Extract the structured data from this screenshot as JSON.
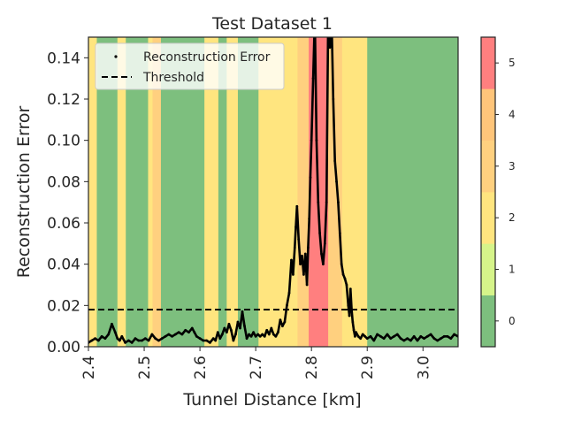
{
  "chart_data": {
    "type": "line",
    "title": "Test Dataset 1",
    "xlabel": "Tunnel Distance [km]",
    "ylabel": "Reconstruction Error",
    "xlim": [
      2.4,
      3.063
    ],
    "ylim": [
      0.0,
      0.15
    ],
    "x_ticks": [
      2.4,
      2.5,
      2.6,
      2.7,
      2.8,
      2.9,
      3.0
    ],
    "x_tick_labels": [
      "2.4",
      "2.5",
      "2.6",
      "2.7",
      "2.8",
      "2.9",
      "3.0"
    ],
    "y_ticks": [
      0.0,
      0.02,
      0.04,
      0.06,
      0.08,
      0.1,
      0.12,
      0.14
    ],
    "y_tick_labels": [
      "0.00",
      "0.02",
      "0.04",
      "0.06",
      "0.08",
      "0.10",
      "0.12",
      "0.14"
    ],
    "grid": false,
    "legend_placement": "upper-left",
    "legend": {
      "error_label": "Reconstruction Error",
      "threshold_label": "Threshold"
    },
    "threshold": 0.018,
    "series": [
      {
        "name": "Reconstruction Error",
        "style": "black dots",
        "x": [
          2.4,
          2.406,
          2.412,
          2.418,
          2.424,
          2.43,
          2.436,
          2.442,
          2.448,
          2.452,
          2.456,
          2.46,
          2.466,
          2.472,
          2.478,
          2.484,
          2.49,
          2.496,
          2.502,
          2.508,
          2.514,
          2.52,
          2.526,
          2.532,
          2.538,
          2.544,
          2.55,
          2.556,
          2.562,
          2.568,
          2.574,
          2.58,
          2.586,
          2.59,
          2.594,
          2.6,
          2.606,
          2.612,
          2.618,
          2.624,
          2.628,
          2.632,
          2.636,
          2.64,
          2.644,
          2.648,
          2.652,
          2.656,
          2.66,
          2.664,
          2.668,
          2.672,
          2.676,
          2.68,
          2.684,
          2.688,
          2.692,
          2.696,
          2.7,
          2.704,
          2.708,
          2.712,
          2.716,
          2.72,
          2.724,
          2.728,
          2.732,
          2.736,
          2.74,
          2.744,
          2.748,
          2.752,
          2.756,
          2.76,
          2.764,
          2.767,
          2.77,
          2.772,
          2.774,
          2.777,
          2.78,
          2.783,
          2.786,
          2.789,
          2.792,
          2.794,
          2.796,
          2.798,
          2.8,
          2.803,
          2.806,
          2.809,
          2.812,
          2.815,
          2.818,
          2.821,
          2.824,
          2.827,
          2.83,
          2.833,
          2.836,
          2.839,
          2.842,
          2.845,
          2.848,
          2.851,
          2.854,
          2.857,
          2.86,
          2.863,
          2.866,
          2.868,
          2.87,
          2.872,
          2.874,
          2.876,
          2.878,
          2.88,
          2.884,
          2.888,
          2.892,
          2.896,
          2.9,
          2.906,
          2.912,
          2.918,
          2.924,
          2.93,
          2.936,
          2.942,
          2.948,
          2.954,
          2.96,
          2.966,
          2.972,
          2.978,
          2.984,
          2.99,
          2.996,
          3.002,
          3.008,
          3.014,
          3.02,
          3.026,
          3.032,
          3.038,
          3.044,
          3.05,
          3.056,
          3.063
        ],
        "y": [
          0.002,
          0.003,
          0.004,
          0.003,
          0.005,
          0.004,
          0.006,
          0.011,
          0.007,
          0.004,
          0.003,
          0.005,
          0.002,
          0.003,
          0.002,
          0.004,
          0.003,
          0.003,
          0.004,
          0.003,
          0.006,
          0.004,
          0.003,
          0.004,
          0.005,
          0.006,
          0.005,
          0.006,
          0.007,
          0.006,
          0.008,
          0.007,
          0.009,
          0.007,
          0.005,
          0.004,
          0.003,
          0.003,
          0.002,
          0.004,
          0.003,
          0.007,
          0.004,
          0.006,
          0.009,
          0.007,
          0.011,
          0.008,
          0.003,
          0.006,
          0.012,
          0.009,
          0.017,
          0.01,
          0.004,
          0.006,
          0.005,
          0.007,
          0.005,
          0.006,
          0.005,
          0.006,
          0.005,
          0.008,
          0.006,
          0.009,
          0.006,
          0.005,
          0.007,
          0.013,
          0.01,
          0.012,
          0.02,
          0.026,
          0.042,
          0.035,
          0.048,
          0.058,
          0.068,
          0.052,
          0.04,
          0.044,
          0.035,
          0.045,
          0.03,
          0.048,
          0.062,
          0.082,
          0.1,
          0.13,
          0.16,
          0.1,
          0.07,
          0.055,
          0.045,
          0.04,
          0.05,
          0.07,
          0.16,
          0.145,
          0.16,
          0.12,
          0.09,
          0.08,
          0.07,
          0.055,
          0.04,
          0.035,
          0.033,
          0.03,
          0.02,
          0.015,
          0.028,
          0.018,
          0.012,
          0.008,
          0.005,
          0.007,
          0.005,
          0.004,
          0.006,
          0.005,
          0.004,
          0.005,
          0.003,
          0.006,
          0.005,
          0.004,
          0.006,
          0.004,
          0.005,
          0.006,
          0.004,
          0.003,
          0.004,
          0.003,
          0.005,
          0.003,
          0.005,
          0.004,
          0.005,
          0.006,
          0.004,
          0.003,
          0.004,
          0.005,
          0.005,
          0.004,
          0.006,
          0.005
        ]
      }
    ],
    "class_bands": [
      {
        "x0": 2.4,
        "x1": 2.415,
        "level": 2
      },
      {
        "x0": 2.415,
        "x1": 2.452,
        "level": 0
      },
      {
        "x0": 2.452,
        "x1": 2.467,
        "level": 2
      },
      {
        "x0": 2.467,
        "x1": 2.507,
        "level": 0
      },
      {
        "x0": 2.507,
        "x1": 2.515,
        "level": 2
      },
      {
        "x0": 2.515,
        "x1": 2.53,
        "level": 3
      },
      {
        "x0": 2.53,
        "x1": 2.608,
        "level": 0
      },
      {
        "x0": 2.608,
        "x1": 2.633,
        "level": 2
      },
      {
        "x0": 2.633,
        "x1": 2.648,
        "level": 0
      },
      {
        "x0": 2.648,
        "x1": 2.668,
        "level": 2
      },
      {
        "x0": 2.668,
        "x1": 2.705,
        "level": 0
      },
      {
        "x0": 2.705,
        "x1": 2.775,
        "level": 2
      },
      {
        "x0": 2.775,
        "x1": 2.795,
        "level": 3
      },
      {
        "x0": 2.795,
        "x1": 2.83,
        "level": 5
      },
      {
        "x0": 2.83,
        "x1": 2.855,
        "level": 3
      },
      {
        "x0": 2.855,
        "x1": 2.865,
        "level": 2
      },
      {
        "x0": 2.865,
        "x1": 2.9,
        "level": 2
      },
      {
        "x0": 2.9,
        "x1": 3.063,
        "level": 0
      }
    ],
    "colorbar": {
      "range": [
        -0.5,
        5.5
      ],
      "ticks": [
        0,
        1,
        2,
        3,
        4,
        5
      ],
      "tick_labels": [
        "0",
        "1",
        "2",
        "3",
        "4",
        "5"
      ],
      "colors": [
        "#7dbf7e",
        "#d6f48a",
        "#ffe57f",
        "#ffd07f",
        "#ffc57a",
        "#ff7f7f"
      ]
    }
  }
}
